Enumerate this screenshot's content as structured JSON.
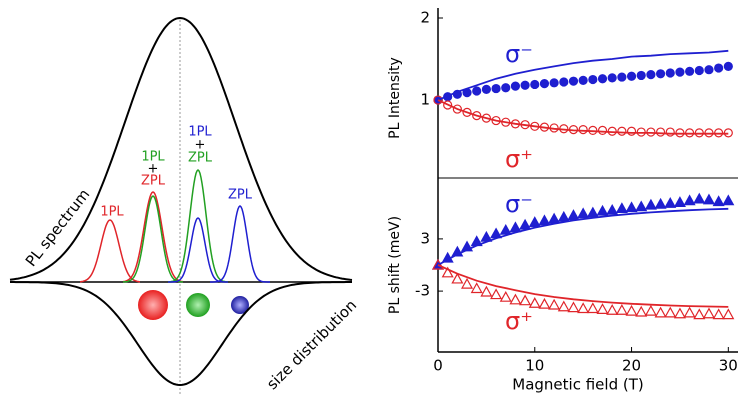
{
  "diagram": {
    "curve_labels": [
      "PL spectrum",
      "size distribution"
    ],
    "peak_labels": [
      {
        "text": "1PL",
        "color": "#e0252a"
      },
      {
        "text": "1PL",
        "color": "#22a022"
      },
      {
        "text": "+",
        "color": "#000000"
      },
      {
        "text": "ZPL",
        "color": "#e0252a"
      },
      {
        "text": "1PL",
        "color": "#1f1fd0"
      },
      {
        "text": "+",
        "color": "#000000"
      },
      {
        "text": "ZPL",
        "color": "#22a022"
      },
      {
        "text": "ZPL",
        "color": "#1f1fd0"
      }
    ]
  },
  "chart_data": [
    {
      "type": "scatter",
      "ylabel": "PL Intensity",
      "xlim": [
        0,
        31
      ],
      "ylim": [
        0.05,
        2
      ],
      "yticks": [
        1,
        2
      ],
      "series": [
        {
          "name": "σ⁻",
          "color": "#1f1fd0",
          "marker": "filled-circle",
          "x": [
            0,
            1,
            2,
            3,
            4,
            5,
            6,
            7,
            8,
            9,
            10,
            11,
            12,
            13,
            14,
            15,
            16,
            17,
            18,
            19,
            20,
            21,
            22,
            23,
            24,
            25,
            26,
            27,
            28,
            29,
            30
          ],
          "values": [
            1.0,
            1.04,
            1.07,
            1.09,
            1.11,
            1.13,
            1.14,
            1.15,
            1.17,
            1.18,
            1.19,
            1.2,
            1.21,
            1.22,
            1.23,
            1.24,
            1.25,
            1.26,
            1.27,
            1.28,
            1.29,
            1.3,
            1.31,
            1.32,
            1.33,
            1.34,
            1.35,
            1.36,
            1.37,
            1.39,
            1.41
          ]
        },
        {
          "name": "σ⁺",
          "color": "#e0252a",
          "marker": "open-circle",
          "x": [
            0,
            1,
            2,
            3,
            4,
            5,
            6,
            7,
            8,
            9,
            10,
            11,
            12,
            13,
            14,
            15,
            16,
            17,
            18,
            19,
            20,
            21,
            22,
            23,
            24,
            25,
            26,
            27,
            28,
            29,
            30
          ],
          "values": [
            1.0,
            0.94,
            0.89,
            0.85,
            0.81,
            0.78,
            0.75,
            0.73,
            0.71,
            0.7,
            0.68,
            0.67,
            0.66,
            0.65,
            0.64,
            0.64,
            0.63,
            0.63,
            0.62,
            0.62,
            0.62,
            0.61,
            0.61,
            0.61,
            0.61,
            0.6,
            0.6,
            0.6,
            0.6,
            0.6,
            0.6
          ]
        },
        {
          "color": "#1f1fd0",
          "marker": "line",
          "x": [
            0,
            2,
            4,
            6,
            8,
            10,
            12,
            14,
            16,
            18,
            20,
            22,
            24,
            26,
            28,
            30
          ],
          "values": [
            1.0,
            1.1,
            1.18,
            1.26,
            1.32,
            1.37,
            1.41,
            1.45,
            1.48,
            1.5,
            1.53,
            1.54,
            1.56,
            1.57,
            1.58,
            1.6
          ]
        },
        {
          "color": "#e0252a",
          "marker": "line",
          "x": [
            0,
            2,
            4,
            6,
            8,
            10,
            12,
            14,
            16,
            18,
            20,
            22,
            24,
            26,
            28,
            30
          ],
          "values": [
            1.0,
            0.89,
            0.81,
            0.75,
            0.71,
            0.68,
            0.65,
            0.63,
            0.62,
            0.61,
            0.6,
            0.6,
            0.59,
            0.59,
            0.59,
            0.59
          ]
        }
      ]
    },
    {
      "type": "scatter",
      "ylabel": "PL shift (meV)",
      "xlabel": "Magnetic field (T)",
      "xlim": [
        0,
        31
      ],
      "ylim": [
        -10,
        10
      ],
      "xticks": [
        0,
        10,
        20,
        30
      ],
      "yticks": [
        3,
        -3
      ],
      "series": [
        {
          "name": "σ⁻",
          "color": "#1f1fd0",
          "marker": "filled-triangle",
          "x": [
            0,
            1,
            2,
            3,
            4,
            5,
            6,
            7,
            8,
            9,
            10,
            11,
            12,
            13,
            14,
            15,
            16,
            17,
            18,
            19,
            20,
            21,
            22,
            23,
            24,
            25,
            26,
            27,
            28,
            29,
            30
          ],
          "values": [
            0,
            0.8,
            1.5,
            2.1,
            2.7,
            3.2,
            3.6,
            4,
            4.3,
            4.6,
            4.9,
            5.1,
            5.3,
            5.5,
            5.7,
            5.9,
            6.0,
            6.2,
            6.3,
            6.5,
            6.6,
            6.7,
            6.9,
            7.0,
            7.1,
            7.2,
            7.4,
            7.6,
            7.5,
            7.3,
            7.4
          ]
        },
        {
          "name": "σ⁺",
          "color": "#e0252a",
          "marker": "open-triangle",
          "x": [
            0,
            1,
            2,
            3,
            4,
            5,
            6,
            7,
            8,
            9,
            10,
            11,
            12,
            13,
            14,
            15,
            16,
            17,
            18,
            19,
            20,
            21,
            22,
            23,
            24,
            25,
            26,
            27,
            28,
            29,
            30
          ],
          "values": [
            0,
            -0.9,
            -1.6,
            -2.2,
            -2.7,
            -3.1,
            -3.4,
            -3.7,
            -4.0,
            -4.1,
            -4.4,
            -4.5,
            -4.6,
            -4.8,
            -4.9,
            -5.0,
            -5.0,
            -5.1,
            -5.2,
            -5.2,
            -5.3,
            -5.4,
            -5.3,
            -5.5,
            -5.5,
            -5.6,
            -5.5,
            -5.7,
            -5.6,
            -5.7,
            -5.7
          ]
        },
        {
          "color": "#1f1fd0",
          "marker": "line",
          "x": [
            0,
            2,
            4,
            6,
            8,
            10,
            12,
            14,
            16,
            18,
            20,
            22,
            24,
            26,
            28,
            30
          ],
          "values": [
            0,
            1.23,
            2.24,
            3.07,
            3.74,
            4.3,
            4.75,
            5.13,
            5.43,
            5.68,
            5.88,
            6.05,
            6.18,
            6.3,
            6.39,
            6.46
          ]
        },
        {
          "color": "#e0252a",
          "marker": "line",
          "x": [
            0,
            2,
            4,
            6,
            8,
            10,
            12,
            14,
            16,
            18,
            20,
            22,
            24,
            26,
            28,
            30
          ],
          "values": [
            0,
            -1.0,
            -1.8,
            -2.43,
            -2.9,
            -3.35,
            -3.68,
            -3.94,
            -4.15,
            -4.32,
            -4.46,
            -4.56,
            -4.65,
            -4.72,
            -4.77,
            -4.82
          ]
        }
      ]
    }
  ]
}
